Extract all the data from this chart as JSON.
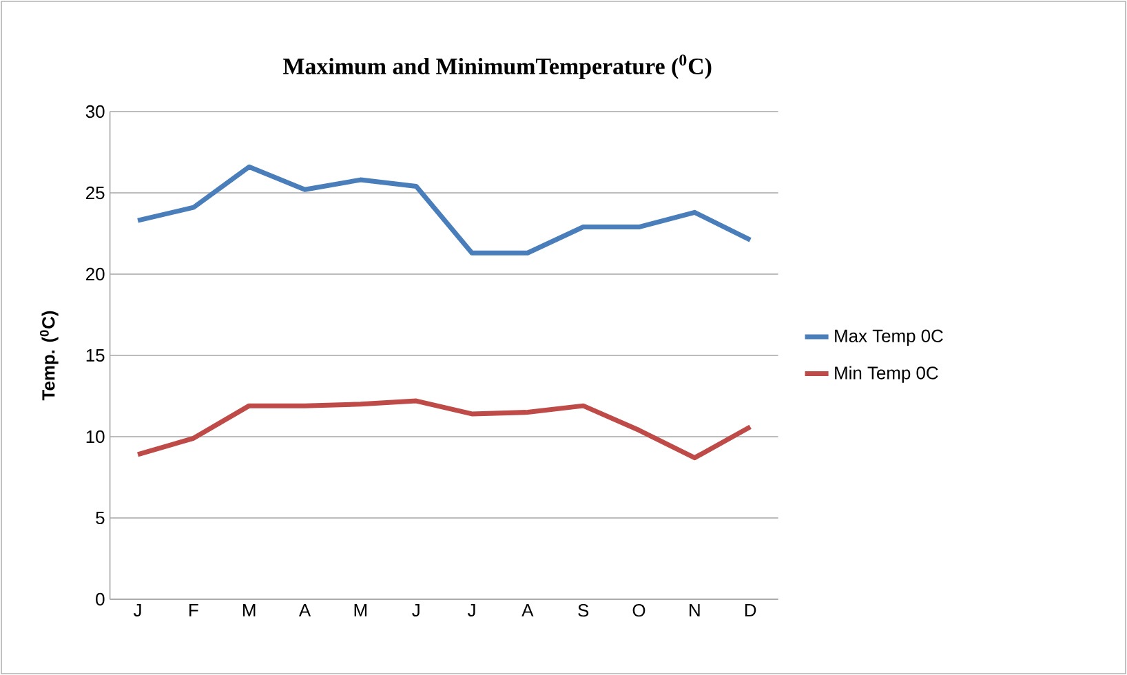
{
  "chart_data": {
    "type": "line",
    "title": "Maximum  and MinimumTemperature ($^{0}$C)",
    "ylabel": "Temp. ($^{0}$C)",
    "categories": [
      "J",
      "F",
      "M",
      "A",
      "M",
      "J",
      "J",
      "A",
      "S",
      "O",
      "N",
      "D"
    ],
    "series": [
      {
        "name": "Max Temp 0C",
        "color": "#4a7ebb",
        "values": [
          23.3,
          24.1,
          26.6,
          25.2,
          25.8,
          25.4,
          21.3,
          21.3,
          22.9,
          22.9,
          23.8,
          22.1
        ]
      },
      {
        "name": "Min Temp 0C",
        "color": "#be4b48",
        "values": [
          8.9,
          9.9,
          11.9,
          11.9,
          12.0,
          12.2,
          11.4,
          11.5,
          11.9,
          10.4,
          8.7,
          10.6
        ]
      }
    ],
    "ylim": [
      0,
      30
    ],
    "yticks": [
      0,
      5,
      10,
      15,
      20,
      25,
      30
    ],
    "grid": "y",
    "legend": "right",
    "marker": "none",
    "line_style": "solid"
  }
}
